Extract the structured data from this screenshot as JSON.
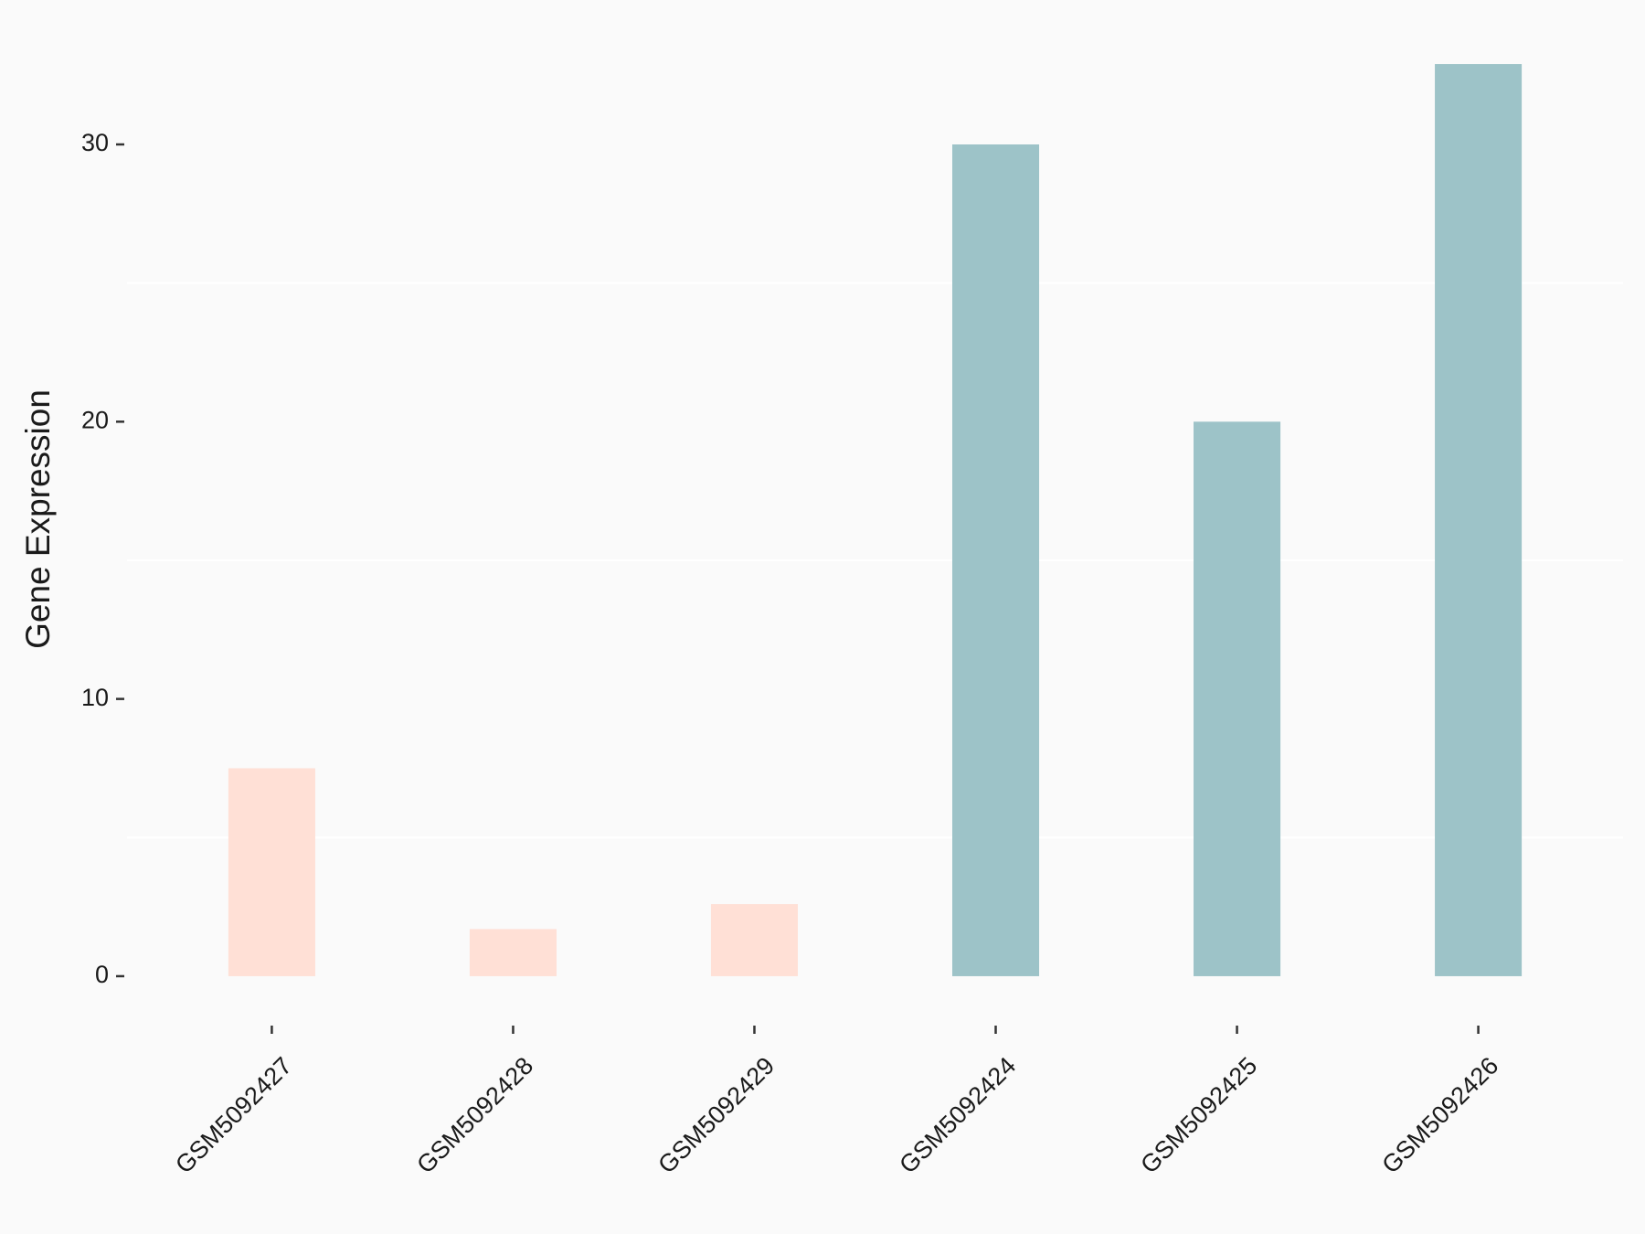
{
  "chart_data": {
    "type": "bar",
    "y_label": "Gene Expression",
    "categories": [
      "GSM5092427",
      "GSM5092428",
      "GSM5092429",
      "GSM5092424",
      "GSM5092425",
      "GSM5092426"
    ],
    "values": [
      7.5,
      1.7,
      2.6,
      30,
      20,
      32.9
    ],
    "colors": [
      "#ffe0d6",
      "#ffe0d6",
      "#ffe0d6",
      "#9dc3c8",
      "#9dc3c8",
      "#9dc3c8"
    ],
    "ylim": [
      -1.65,
      34.55
    ],
    "yticks": [
      0,
      10,
      20,
      30
    ],
    "minor_grid_yticks": [
      5,
      15,
      25
    ],
    "grid": true
  }
}
